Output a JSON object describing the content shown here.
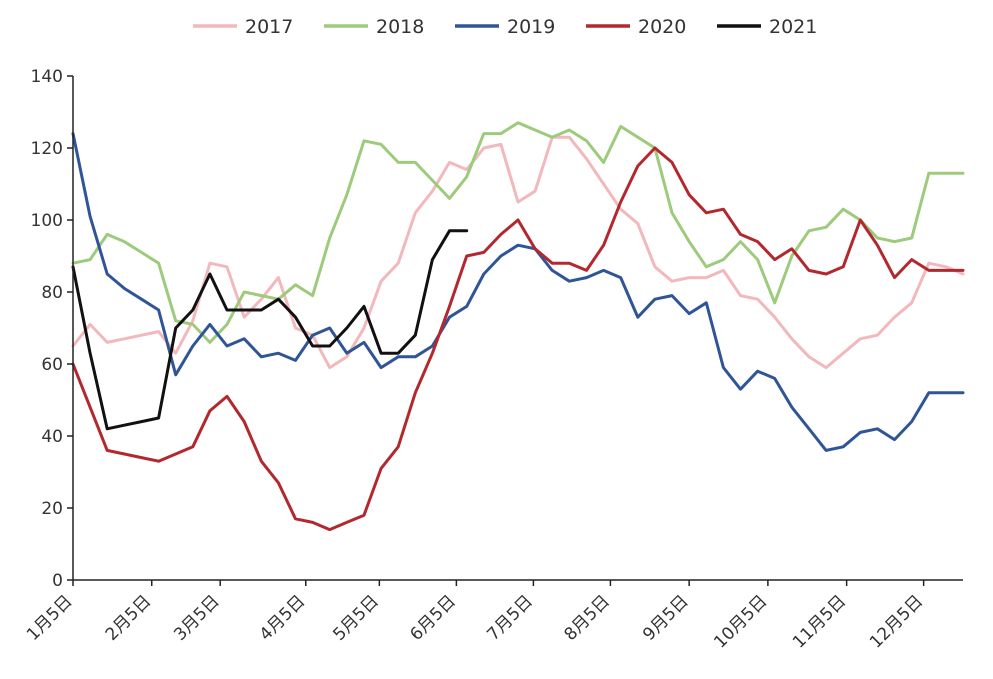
{
  "chart_data": {
    "type": "line",
    "title": "",
    "xlabel": "",
    "ylabel": "",
    "ylim": [
      0,
      140
    ],
    "yticks": [
      0,
      20,
      40,
      60,
      80,
      100,
      120,
      140
    ],
    "xlim": [
      0,
      52
    ],
    "x_tick_labels": [
      {
        "label": "1月5日",
        "x": 0
      },
      {
        "label": "2月5日",
        "x": 4.6
      },
      {
        "label": "3月5日",
        "x": 8.6
      },
      {
        "label": "4月5日",
        "x": 13.6
      },
      {
        "label": "5月5日",
        "x": 17.9
      },
      {
        "label": "6月5日",
        "x": 22.4
      },
      {
        "label": "7月5日",
        "x": 26.9
      },
      {
        "label": "8月5日",
        "x": 31.4
      },
      {
        "label": "9月5日",
        "x": 36.0
      },
      {
        "label": "10月5日",
        "x": 40.6
      },
      {
        "label": "11月5日",
        "x": 45.2
      },
      {
        "label": "12月5日",
        "x": 49.7
      }
    ],
    "grid": false,
    "legend_position": "top",
    "series": [
      {
        "name": "2017",
        "color": "#f2b8bc",
        "x": [
          0,
          1,
          2,
          3,
          4,
          5,
          6,
          7,
          8,
          9,
          10,
          11,
          12,
          13,
          14,
          15,
          16,
          17,
          18,
          19,
          20,
          21,
          22,
          23,
          24,
          25,
          26,
          27,
          28,
          29,
          30,
          31,
          32,
          33,
          34,
          35,
          36,
          37,
          38,
          39,
          40,
          41,
          42,
          43,
          44,
          45,
          46,
          47,
          48,
          49,
          50,
          51,
          52
        ],
        "values": [
          65,
          71,
          66,
          67,
          68,
          69,
          63,
          72,
          88,
          87,
          73,
          78,
          84,
          70,
          68,
          59,
          62,
          70,
          83,
          88,
          102,
          108,
          116,
          114,
          120,
          121,
          105,
          108,
          123,
          123,
          117,
          110,
          103,
          99,
          87,
          83,
          84,
          84,
          86,
          79,
          78,
          73,
          67,
          62,
          59,
          63,
          67,
          68,
          73,
          77,
          88,
          87,
          85
        ]
      },
      {
        "name": "2018",
        "color": "#9dcb7b",
        "x": [
          0,
          1,
          2,
          3,
          4,
          5,
          6,
          7,
          8,
          9,
          10,
          11,
          12,
          13,
          14,
          15,
          16,
          17,
          18,
          19,
          20,
          21,
          22,
          23,
          24,
          25,
          26,
          27,
          28,
          29,
          30,
          31,
          32,
          33,
          34,
          35,
          36,
          37,
          38,
          39,
          40,
          41,
          42,
          43,
          44,
          45,
          46,
          47,
          48,
          49,
          50,
          51,
          52
        ],
        "values": [
          88,
          89,
          96,
          94,
          91,
          88,
          72,
          71,
          66,
          71,
          80,
          79,
          78,
          82,
          79,
          95,
          107,
          122,
          121,
          116,
          116,
          111,
          106,
          112,
          124,
          124,
          127,
          125,
          123,
          125,
          122,
          116,
          126,
          123,
          120,
          102,
          94,
          87,
          89,
          94,
          89,
          77,
          90,
          97,
          98,
          103,
          100,
          95,
          94,
          95,
          113,
          113,
          113
        ]
      },
      {
        "name": "2019",
        "color": "#2f5597",
        "x": [
          0,
          1,
          2,
          3,
          4,
          5,
          6,
          7,
          8,
          9,
          10,
          11,
          12,
          13,
          14,
          15,
          16,
          17,
          18,
          19,
          20,
          21,
          22,
          23,
          24,
          25,
          26,
          27,
          28,
          29,
          30,
          31,
          32,
          33,
          34,
          35,
          36,
          37,
          38,
          39,
          40,
          41,
          42,
          43,
          44,
          45,
          46,
          47,
          48,
          49,
          50,
          51,
          52
        ],
        "values": [
          124,
          101,
          85,
          81,
          78,
          75,
          57,
          65,
          71,
          65,
          67,
          62,
          63,
          61,
          68,
          70,
          63,
          66,
          59,
          62,
          62,
          65,
          73,
          76,
          85,
          90,
          93,
          92,
          86,
          83,
          84,
          86,
          84,
          73,
          78,
          79,
          74,
          77,
          59,
          53,
          58,
          56,
          48,
          42,
          36,
          37,
          41,
          42,
          39,
          44,
          52,
          52,
          52
        ]
      },
      {
        "name": "2020",
        "color": "#b3282e",
        "x": [
          0,
          1,
          2,
          3,
          4,
          5,
          6,
          7,
          8,
          9,
          10,
          11,
          12,
          13,
          14,
          15,
          16,
          17,
          18,
          19,
          20,
          21,
          22,
          23,
          24,
          25,
          26,
          27,
          28,
          29,
          30,
          31,
          32,
          33,
          34,
          35,
          36,
          37,
          38,
          39,
          40,
          41,
          42,
          43,
          44,
          45,
          46,
          47,
          48,
          49,
          50,
          51,
          52
        ],
        "values": [
          60,
          48,
          36,
          35,
          34,
          33,
          35,
          37,
          47,
          51,
          44,
          33,
          27,
          17,
          16,
          14,
          16,
          18,
          31,
          37,
          52,
          63,
          76,
          90,
          91,
          96,
          100,
          92,
          88,
          88,
          86,
          93,
          105,
          115,
          120,
          116,
          107,
          102,
          103,
          96,
          94,
          89,
          92,
          86,
          85,
          87,
          100,
          93,
          84,
          89,
          86,
          86,
          86
        ]
      },
      {
        "name": "2021",
        "color": "#111111",
        "x": [
          0,
          1,
          2,
          3,
          4,
          5,
          6,
          7,
          8,
          9,
          10,
          11,
          12,
          13,
          14,
          15,
          16,
          17,
          18,
          19,
          20,
          21,
          22,
          23
        ],
        "values": [
          87,
          63,
          42,
          43,
          44,
          45,
          70,
          75,
          85,
          75,
          75,
          75,
          78,
          73,
          65,
          65,
          70,
          76,
          63,
          63,
          68,
          89,
          97,
          97
        ]
      }
    ]
  }
}
